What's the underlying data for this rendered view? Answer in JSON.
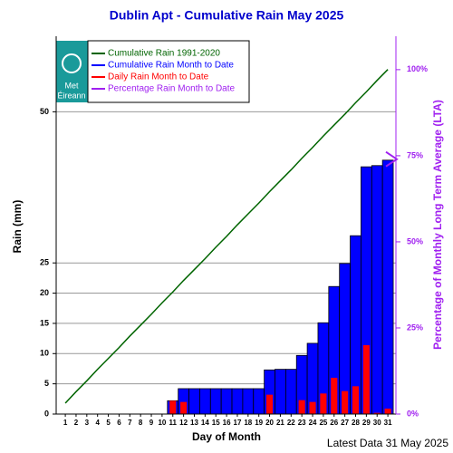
{
  "chart_data": {
    "type": "bar",
    "title": "Dublin Apt - Cumulative Rain May   2025",
    "x_label": "Day of Month",
    "y_label": "Rain (mm)",
    "y2_label": "Percentage  of Monthly Long Term Average (LTA)",
    "footer": "Latest Data 31 May 2025",
    "logo": [
      "Met",
      "Éireann"
    ],
    "x": [
      1,
      2,
      3,
      4,
      5,
      6,
      7,
      8,
      9,
      10,
      11,
      12,
      13,
      14,
      15,
      16,
      17,
      18,
      19,
      20,
      21,
      22,
      23,
      24,
      25,
      26,
      27,
      28,
      29,
      30,
      31
    ],
    "xlim": [
      0.15,
      31.75
    ],
    "ylim": [
      0,
      62.5
    ],
    "yticks": [
      0,
      5,
      10,
      15,
      20,
      25,
      50
    ],
    "y2lim": [
      0,
      109.7
    ],
    "y2ticks": [
      {
        "value": 0,
        "label": "0%"
      },
      {
        "value": 25,
        "label": "25%"
      },
      {
        "value": 50,
        "label": "50%"
      },
      {
        "value": 75,
        "label": "75%"
      },
      {
        "value": 100,
        "label": "100%"
      }
    ],
    "grid": true,
    "series": [
      {
        "name": "Cumulative Rain 1991-2020",
        "color": "#006400",
        "kind": "line",
        "values": [
          1.8,
          3.7,
          5.5,
          7.4,
          9.2,
          11.0,
          12.9,
          14.7,
          16.5,
          18.4,
          20.2,
          22.1,
          23.9,
          25.7,
          27.6,
          29.4,
          31.3,
          33.1,
          34.9,
          36.8,
          38.6,
          40.4,
          42.3,
          44.1,
          46.0,
          47.8,
          49.6,
          51.5,
          53.3,
          55.2,
          57.0
        ]
      },
      {
        "name": "Cumulative Rain Month to Date",
        "color": "#0000ff",
        "kind": "bar",
        "values": [
          0,
          0,
          0,
          0,
          0,
          0,
          0,
          0,
          0,
          0,
          2.2,
          4.2,
          4.2,
          4.2,
          4.2,
          4.2,
          4.2,
          4.2,
          4.2,
          7.3,
          7.4,
          7.4,
          9.7,
          11.7,
          15.1,
          21.1,
          24.9,
          29.5,
          40.9,
          41.1,
          42.0
        ]
      },
      {
        "name": "Daily Rain Month to Date",
        "color": "#ff0000",
        "kind": "narrow-bar",
        "values": [
          0,
          0,
          0,
          0,
          0,
          0,
          0,
          0,
          0,
          0,
          2.2,
          2.0,
          0,
          0,
          0,
          0,
          0,
          0,
          0,
          3.2,
          0,
          0,
          2.3,
          2.0,
          3.4,
          6.0,
          3.8,
          4.6,
          11.4,
          0.2,
          0.9
        ]
      },
      {
        "name": "Percentage Rain Month to Date",
        "color": "#a020f0",
        "kind": "pointer",
        "axis": "y2",
        "values": [
          null,
          null,
          null,
          null,
          null,
          null,
          null,
          null,
          null,
          null,
          null,
          null,
          null,
          null,
          null,
          null,
          null,
          null,
          null,
          null,
          null,
          null,
          null,
          null,
          null,
          null,
          null,
          null,
          null,
          null,
          74
        ]
      }
    ]
  }
}
